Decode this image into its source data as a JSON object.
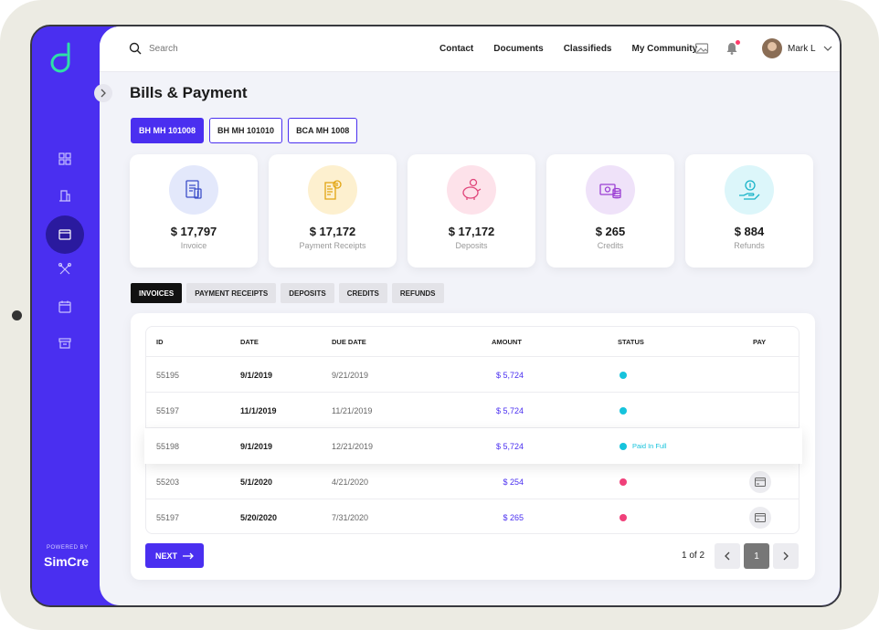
{
  "search": {
    "placeholder": "Search"
  },
  "topnav": {
    "items": [
      "Contact",
      "Documents",
      "Classifieds",
      "My Community"
    ]
  },
  "user": {
    "name": "Mark L"
  },
  "sidebar": {
    "powered_by": "POWERED BY",
    "brand": "SimCre"
  },
  "page": {
    "title": "Bills & Payment"
  },
  "accounts": {
    "tabs": [
      "BH MH 101008",
      "BH MH 101010",
      "BCA MH 1008"
    ],
    "active": 0
  },
  "cards": [
    {
      "value": "$ 17,797",
      "label": "Invoice",
      "color": "#e3e8fb",
      "icon": "invoice-icon"
    },
    {
      "value": "$ 17,172",
      "label": "Payment Receipts",
      "color": "#fdf0cf",
      "icon": "receipt-icon"
    },
    {
      "value": "$ 17,172",
      "label": "Deposits",
      "color": "#fde2ea",
      "icon": "piggy-bank-icon"
    },
    {
      "value": "$ 265",
      "label": "Credits",
      "color": "#efe2f9",
      "icon": "credits-icon"
    },
    {
      "value": "$ 884",
      "label": "Refunds",
      "color": "#dcf6fa",
      "icon": "refund-icon"
    }
  ],
  "list_tabs": {
    "items": [
      "INVOICES",
      "PAYMENT RECEIPTS",
      "DEPOSITS",
      "CREDITS",
      "REFUNDS"
    ],
    "active": 0
  },
  "table": {
    "headers": {
      "id": "ID",
      "date": "DATE",
      "due": "DUE DATE",
      "amount": "AMOUNT",
      "status": "STATUS",
      "pay": "PAY"
    },
    "rows": [
      {
        "id": "55195",
        "date": "9/1/2019",
        "due": "9/21/2019",
        "amount": "$ 5,724",
        "status_color": "#16c3dc",
        "status_text": "",
        "pay": false
      },
      {
        "id": "55197",
        "date": "11/1/2019",
        "due": "11/21/2019",
        "amount": "$ 5,724",
        "status_color": "#16c3dc",
        "status_text": "",
        "pay": false
      },
      {
        "id": "55198",
        "date": "9/1/2019",
        "due": "12/21/2019",
        "amount": "$ 5,724",
        "status_color": "#16c3dc",
        "status_text": "Paid In Full",
        "pay": false
      },
      {
        "id": "55203",
        "date": "5/1/2020",
        "due": "4/21/2020",
        "amount": "$ 254",
        "status_color": "#f0407a",
        "status_text": "",
        "pay": true
      },
      {
        "id": "55197",
        "date": "5/20/2020",
        "due": "7/31/2020",
        "amount": "$ 265",
        "status_color": "#f0407a",
        "status_text": "",
        "pay": true
      }
    ]
  },
  "pagination": {
    "next_label": "NEXT",
    "page_text": "1 of 2",
    "current_page": "1"
  },
  "colors": {
    "accent": "#4a2ff0",
    "paid": "#16c3dc",
    "due": "#f0407a"
  }
}
